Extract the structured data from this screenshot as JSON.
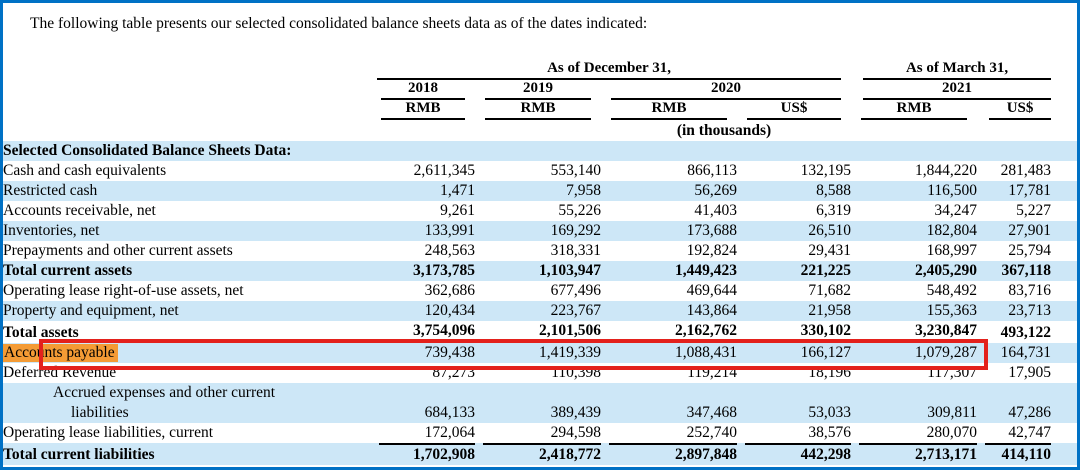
{
  "intro": "The following table presents our selected consolidated balance sheets data as of the dates indicated:",
  "colors": {
    "frame_blue": "#0071c5",
    "row_stripe": "#cde7f7",
    "annotation_red": "#e3211c",
    "annotation_orange": "#f49b35"
  },
  "annotation": {
    "highlighted_row_label": "Accounts payable"
  },
  "table": {
    "group_headers": [
      {
        "label": "As of December 31,"
      },
      {
        "label": "As of March 31,"
      }
    ],
    "year_headers": [
      "2018",
      "2019",
      "2020",
      "2021"
    ],
    "currency_headers": [
      "RMB",
      "RMB",
      "RMB",
      "US$",
      "RMB",
      "US$"
    ],
    "units_note": "(in thousands)",
    "rows": [
      {
        "label": "Selected Consolidated Balance Sheets Data:",
        "values": [
          "",
          "",
          "",
          "",
          "",
          ""
        ]
      },
      {
        "label": "Cash and cash equivalents",
        "values": [
          "2,611,345",
          "553,140",
          "866,113",
          "132,195",
          "1,844,220",
          "281,483"
        ]
      },
      {
        "label": "Restricted cash",
        "values": [
          "1,471",
          "7,958",
          "56,269",
          "8,588",
          "116,500",
          "17,781"
        ]
      },
      {
        "label": "Accounts receivable, net",
        "values": [
          "9,261",
          "55,226",
          "41,403",
          "6,319",
          "34,247",
          "5,227"
        ]
      },
      {
        "label": "Inventories, net",
        "values": [
          "133,991",
          "169,292",
          "173,688",
          "26,510",
          "182,804",
          "27,901"
        ]
      },
      {
        "label": "Prepayments and other current assets",
        "values": [
          "248,563",
          "318,331",
          "192,824",
          "29,431",
          "168,997",
          "25,794"
        ]
      },
      {
        "label": "Total current assets",
        "values": [
          "3,173,785",
          "1,103,947",
          "1,449,423",
          "221,225",
          "2,405,290",
          "367,118"
        ]
      },
      {
        "label": "Operating lease right-of-use assets, net",
        "values": [
          "362,686",
          "677,496",
          "469,644",
          "71,682",
          "548,492",
          "83,716"
        ]
      },
      {
        "label": "Property and equipment, net",
        "values": [
          "120,434",
          "223,767",
          "143,864",
          "21,958",
          "155,363",
          "23,713"
        ]
      },
      {
        "label": "Total assets",
        "values": [
          "3,754,096",
          "2,101,506",
          "2,162,762",
          "330,102",
          "3,230,847",
          "493,122"
        ]
      },
      {
        "label": "Accounts payable",
        "values": [
          "739,438",
          "1,419,339",
          "1,088,431",
          "166,127",
          "1,079,287",
          "164,731"
        ]
      },
      {
        "label": "Deferred Revenue",
        "values": [
          "87,273",
          "110,398",
          "119,214",
          "18,196",
          "117,307",
          "17,905"
        ]
      },
      {
        "label": "Accrued expenses and other current",
        "label_line2": "liabilities",
        "values": [
          "684,133",
          "389,439",
          "347,468",
          "53,033",
          "309,811",
          "47,286"
        ]
      },
      {
        "label": "Operating lease liabilities, current",
        "values": [
          "172,064",
          "294,598",
          "252,740",
          "38,576",
          "280,070",
          "42,747"
        ]
      },
      {
        "label": "Total current liabilities",
        "values": [
          "1,702,908",
          "2,418,772",
          "2,897,848",
          "442,298",
          "2,713,171",
          "414,110"
        ]
      }
    ]
  }
}
